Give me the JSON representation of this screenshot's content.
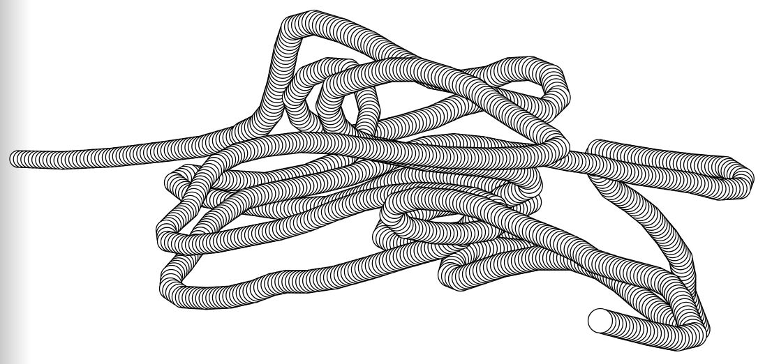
{
  "scene": {
    "subject": "tangled-ring-tube",
    "ring_fill": "#ffffff",
    "ring_stroke": "#000000",
    "edge_shadow": "#c9c9c9"
  }
}
